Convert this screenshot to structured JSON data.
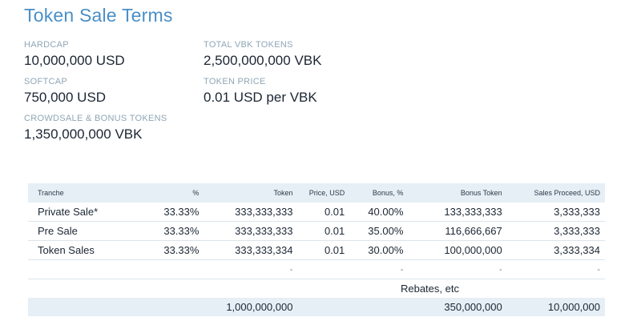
{
  "title": "Token Sale Terms",
  "terms": {
    "hardcap": {
      "label": "HARDCAP",
      "value": "10,000,000 USD"
    },
    "softcap": {
      "label": "SOFTCAP",
      "value": "750,000 USD"
    },
    "crowdsale": {
      "label": "CROWDSALE & BONUS TOKENS",
      "value": "1,350,000,000 VBK"
    },
    "total": {
      "label": "TOTAL VBK TOKENS",
      "value": "2,500,000,000 VBK"
    },
    "price": {
      "label": "TOKEN PRICE",
      "value": "0.01 USD per VBK"
    }
  },
  "table": {
    "headers": [
      "Tranche",
      "%",
      "Token",
      "Price, USD",
      "Bonus, %",
      "Bonus Token",
      "Sales Proceed, USD"
    ],
    "rows": [
      [
        "Private Sale*",
        "33.33%",
        "333,333,333",
        "0.01",
        "40.00%",
        "133,333,333",
        "3,333,333"
      ],
      [
        "Pre Sale",
        "33.33%",
        "333,333,333",
        "0.01",
        "35.00%",
        "116,666,667",
        "3,333,333"
      ],
      [
        "Token Sales",
        "33.33%",
        "333,333,334",
        "0.01",
        "30.00%",
        "100,000,000",
        "3,333,334"
      ],
      [
        "",
        "",
        "-",
        "",
        "-",
        "-",
        "-"
      ]
    ],
    "rebate_label": "Rebates, etc",
    "totals": [
      "",
      "",
      "1,000,000,000",
      "",
      "",
      "350,000,000",
      "10,000,000"
    ]
  }
}
